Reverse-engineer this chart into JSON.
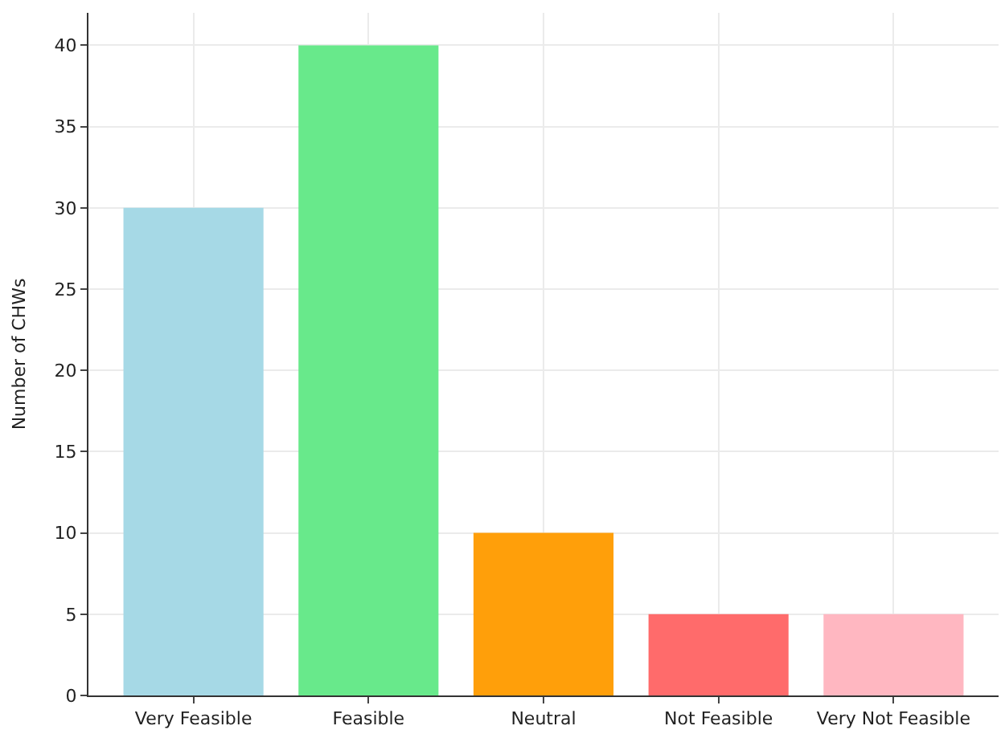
{
  "chart_data": {
    "type": "bar",
    "ylabel": "Number of CHWs",
    "categories": [
      "Very Feasible",
      "Feasible",
      "Neutral",
      "Not Feasible",
      "Very Not Feasible"
    ],
    "values": [
      30,
      40,
      10,
      5,
      5
    ],
    "colors": [
      "#a6d9e6",
      "#68e98b",
      "#ff9f0a",
      "#ff6b6b",
      "#ffb7c1"
    ],
    "ylim": [
      0,
      42
    ],
    "yticks": [
      0,
      5,
      10,
      15,
      20,
      25,
      30,
      35,
      40
    ],
    "grid": true
  }
}
